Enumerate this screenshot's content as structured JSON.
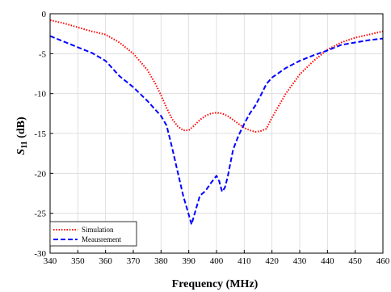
{
  "chart_data": {
    "type": "line",
    "xlabel": "Frequency (MHz)",
    "ylabel_main": "S",
    "ylabel_sub": "11",
    "ylabel_unit": " (dB)",
    "xlim": [
      340,
      460
    ],
    "ylim": [
      -30,
      0
    ],
    "xticks": [
      340,
      350,
      360,
      370,
      380,
      390,
      400,
      410,
      420,
      430,
      440,
      450,
      460
    ],
    "yticks": [
      0,
      -5,
      -10,
      -15,
      -20,
      -25,
      -30
    ],
    "grid": true,
    "legend_position": "bottom-left",
    "series": [
      {
        "name": "Simulation",
        "color": "#ff0000",
        "style": "dotted",
        "x": [
          340,
          345,
          350,
          355,
          360,
          365,
          370,
          375,
          378,
          380,
          382,
          384,
          386,
          388,
          390,
          392,
          394,
          396,
          398,
          400,
          402,
          404,
          406,
          408,
          410,
          412,
          414,
          416,
          418,
          420,
          425,
          430,
          435,
          440,
          445,
          450,
          455,
          460
        ],
        "y": [
          -0.8,
          -1.2,
          -1.7,
          -2.2,
          -2.6,
          -3.6,
          -5.0,
          -7.0,
          -8.8,
          -10.2,
          -11.8,
          -13.2,
          -14.1,
          -14.6,
          -14.6,
          -14.0,
          -13.3,
          -12.8,
          -12.5,
          -12.4,
          -12.5,
          -12.8,
          -13.3,
          -13.8,
          -14.3,
          -14.6,
          -14.8,
          -14.7,
          -14.4,
          -13.0,
          -10.0,
          -7.6,
          -5.9,
          -4.5,
          -3.6,
          -3.0,
          -2.6,
          -2.2
        ]
      },
      {
        "name": "Meausrement",
        "color": "#0000ff",
        "style": "dashed",
        "x": [
          340,
          345,
          350,
          355,
          360,
          365,
          370,
          375,
          380,
          382,
          384,
          386,
          388,
          390,
          391,
          392,
          394,
          396,
          398,
          400,
          401,
          402,
          403,
          404,
          406,
          408,
          410,
          412,
          414,
          416,
          418,
          420,
          425,
          430,
          435,
          440,
          445,
          450,
          455,
          460
        ],
        "y": [
          -2.8,
          -3.5,
          -4.2,
          -4.9,
          -5.9,
          -7.8,
          -9.2,
          -10.9,
          -12.8,
          -14.0,
          -16.8,
          -19.8,
          -22.8,
          -25.2,
          -26.4,
          -25.2,
          -22.8,
          -22.2,
          -21.2,
          -20.3,
          -21.0,
          -22.3,
          -21.8,
          -20.5,
          -17.0,
          -15.2,
          -13.8,
          -12.5,
          -11.5,
          -10.2,
          -8.8,
          -8.0,
          -6.8,
          -5.9,
          -5.2,
          -4.6,
          -3.9,
          -3.6,
          -3.3,
          -3.1
        ]
      }
    ]
  }
}
